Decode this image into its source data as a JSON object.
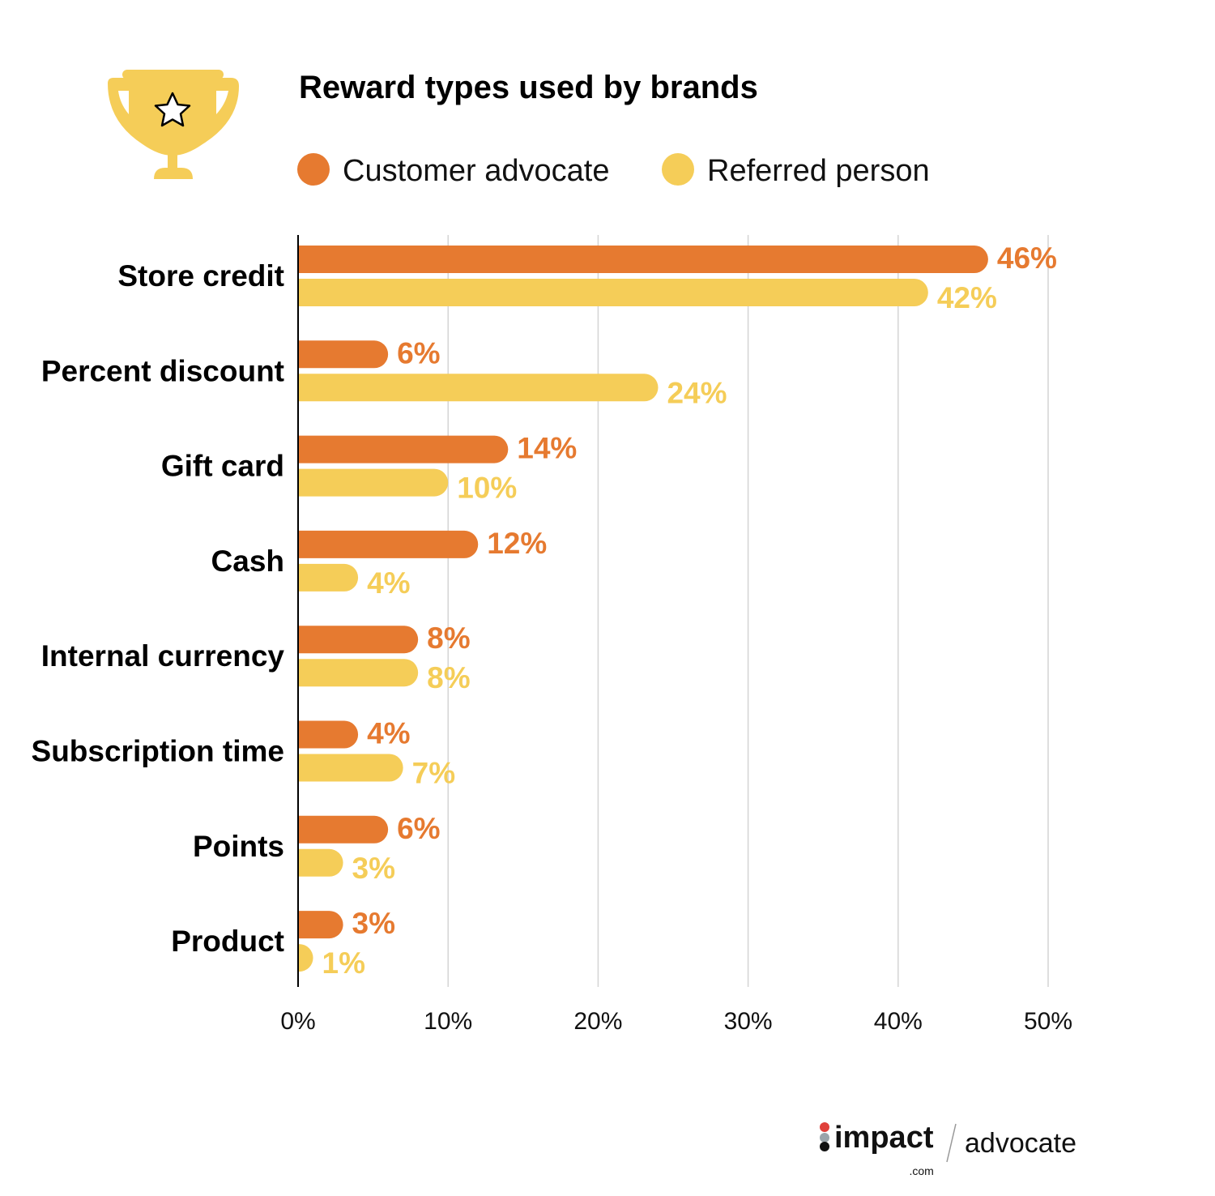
{
  "chart_data": {
    "type": "bar",
    "orientation": "horizontal",
    "title": "Reward types used by brands",
    "categories": [
      "Store credit",
      "Percent discount",
      "Gift card",
      "Cash",
      "Internal currency",
      "Subscription time",
      "Points",
      "Product"
    ],
    "series": [
      {
        "name": "Customer advocate",
        "color": "#E67A30",
        "values": [
          46,
          6,
          14,
          12,
          8,
          4,
          6,
          3
        ]
      },
      {
        "name": "Referred person",
        "color": "#F5CD58",
        "values": [
          42,
          24,
          10,
          4,
          8,
          7,
          3,
          1
        ]
      }
    ],
    "value_labels": {
      "Customer advocate": [
        "46%",
        "6%",
        "14%",
        "12%",
        "8%",
        "4%",
        "6%",
        "3%"
      ],
      "Referred person": [
        "42%",
        "24%",
        "10%",
        "4%",
        "8%",
        "7%",
        "3%",
        "1%"
      ]
    },
    "xlim": [
      0,
      50
    ],
    "xticks": [
      "0%",
      "10%",
      "20%",
      "30%",
      "40%",
      "50%"
    ],
    "xlabel": "",
    "ylabel": "",
    "grid": "vertical",
    "legend": "top"
  },
  "icon": "trophy-star-icon",
  "logo": {
    "brand": "impact",
    "suffix": ".com",
    "product": "advocate"
  }
}
